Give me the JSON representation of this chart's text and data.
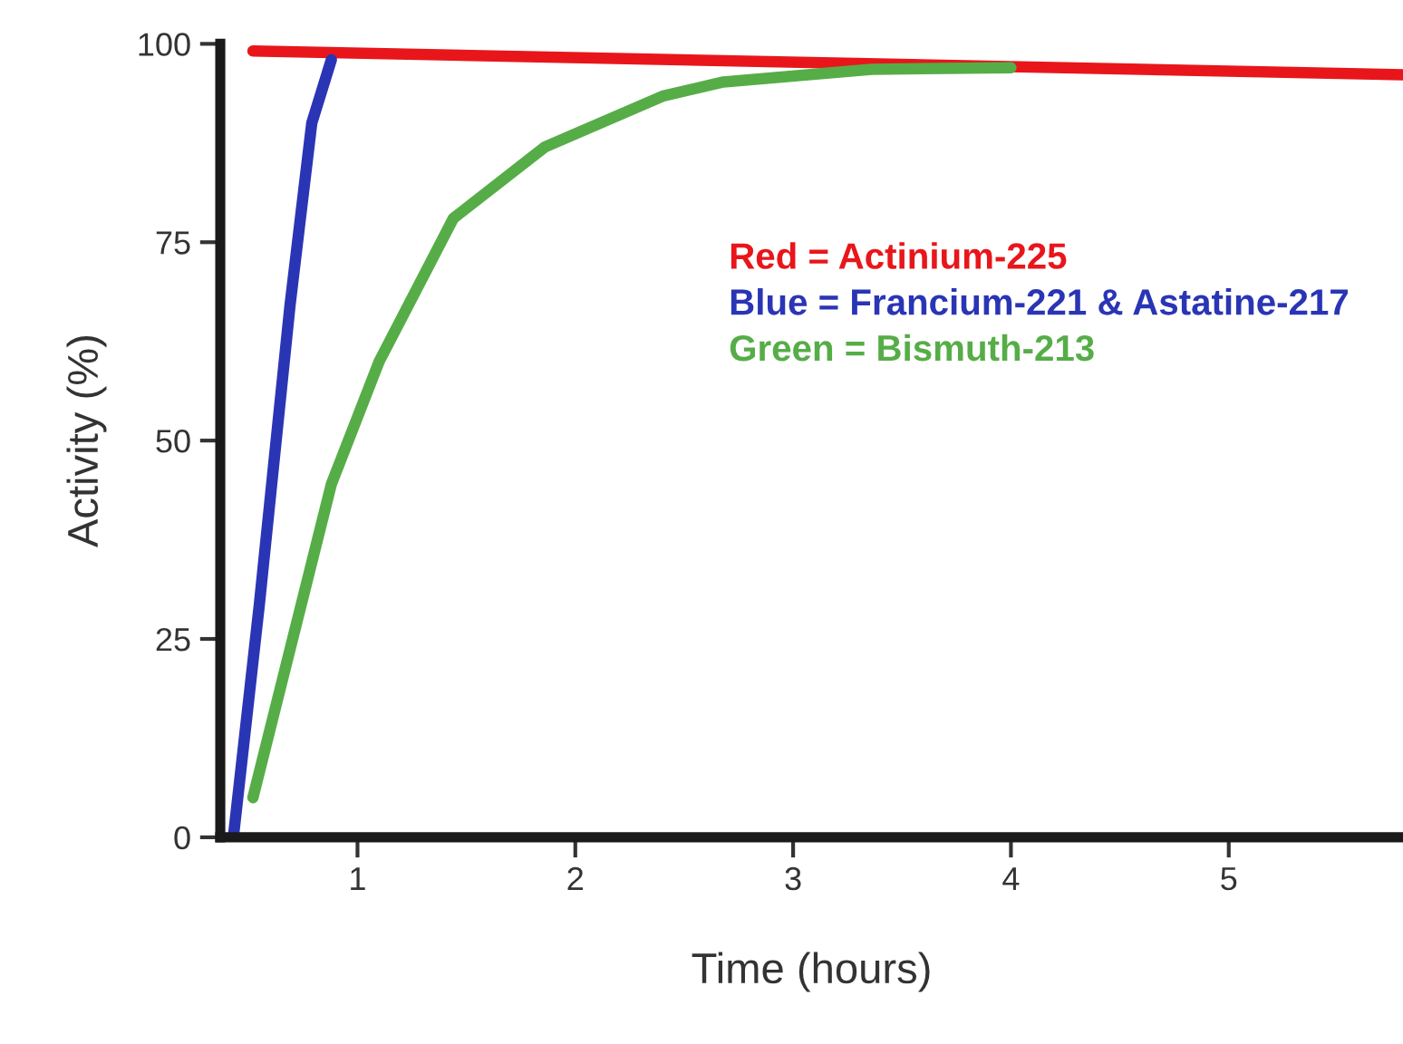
{
  "chart_data": {
    "type": "line",
    "xlabel": "Time (hours)",
    "ylabel": "Activity (%)",
    "xlim": [
      0.37,
      5.8
    ],
    "ylim": [
      0,
      100
    ],
    "xticks": [
      1,
      2,
      3,
      4,
      5
    ],
    "yticks": [
      0,
      25,
      50,
      75,
      100
    ],
    "grid": false,
    "legend": "right",
    "line_style": "solid",
    "marker": "none",
    "series": [
      {
        "name": "Red = Actinium-225",
        "color": "#e8161b",
        "x": [
          0.52,
          5.8
        ],
        "values": [
          99.1,
          96.1
        ]
      },
      {
        "name": "Blue = Francium-221 & Astatine-217",
        "color": "#2a35b5",
        "x": [
          0.43,
          0.55,
          0.69,
          0.79,
          0.88
        ],
        "values": [
          0,
          29.5,
          67,
          90,
          98
        ]
      },
      {
        "name": "Green = Bismuth-213",
        "color": "#56ad47",
        "x": [
          0.52,
          0.88,
          1.1,
          1.44,
          1.86,
          2.4,
          2.68,
          3.36,
          4.0
        ],
        "values": [
          5,
          44.5,
          60,
          78,
          87,
          93.4,
          95.2,
          96.8,
          97
        ]
      }
    ]
  }
}
